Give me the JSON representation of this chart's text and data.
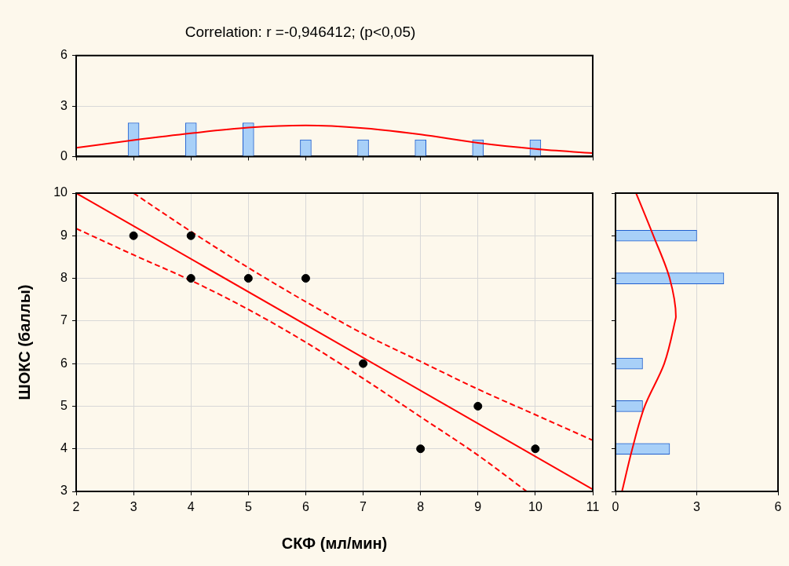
{
  "chart_data": [
    {
      "type": "bar",
      "title": "Correlation: r =-0,946412; (p<0,05)",
      "xlim": [
        2,
        11
      ],
      "xticks": [
        2,
        3,
        4,
        5,
        6,
        7,
        8,
        9,
        10,
        11
      ],
      "ylim": [
        0,
        6
      ],
      "yticks": [
        0,
        3,
        6
      ],
      "tick_labels": "y",
      "grid": "y",
      "series": [
        {
          "color": "#a8d0f8",
          "x": [
            3,
            4,
            5,
            6,
            7,
            8,
            9,
            10
          ],
          "values": [
            2,
            2,
            2,
            1,
            1,
            1,
            1,
            1
          ]
        },
        {
          "type": "line",
          "color": "#ff0000",
          "x": [
            2,
            3,
            4,
            5,
            6,
            7,
            8,
            9,
            10,
            11
          ],
          "values": [
            0.52,
            0.97,
            1.38,
            1.72,
            1.85,
            1.69,
            1.31,
            0.81,
            0.45,
            0.2
          ]
        }
      ]
    },
    {
      "type": "scatter",
      "xlabel": "СКФ (мл/мин)",
      "ylabel": "ШОКС (баллы)",
      "xlim": [
        2,
        11
      ],
      "xticks": [
        2,
        3,
        4,
        5,
        6,
        7,
        8,
        9,
        10,
        11
      ],
      "ylim": [
        3,
        10
      ],
      "yticks": [
        3,
        4,
        5,
        6,
        7,
        8,
        9,
        10
      ],
      "grid": true,
      "series": [
        {
          "color": "#000000",
          "marker": "circle",
          "x": [
            3,
            4,
            4,
            5,
            6,
            7,
            8,
            9,
            10
          ],
          "values": [
            9,
            9,
            8,
            8,
            8,
            6,
            4,
            5,
            4
          ]
        },
        {
          "type": "line",
          "color": "#ff0000",
          "x": [
            2,
            11
          ],
          "values": [
            10,
            3.05
          ]
        },
        {
          "type": "line",
          "color": "#ff0000",
          "line_style": "dashed",
          "x": [
            3,
            4,
            5,
            6,
            7,
            8,
            9,
            10,
            11
          ],
          "values": [
            10,
            9.1,
            8.25,
            7.45,
            6.7,
            6.05,
            5.4,
            4.8,
            4.2
          ]
        },
        {
          "type": "line",
          "color": "#ff0000",
          "line_style": "dashed",
          "x": [
            2,
            3,
            4,
            5,
            6,
            7,
            8,
            9,
            9.85
          ],
          "values": [
            9.17,
            8.55,
            7.95,
            7.27,
            6.5,
            5.65,
            4.75,
            3.85,
            3
          ]
        }
      ]
    },
    {
      "type": "bar",
      "orientation": "horizontal",
      "xlim": [
        0,
        6
      ],
      "xticks": [
        0,
        3,
        6
      ],
      "ylim": [
        3,
        10
      ],
      "yticks": [
        3,
        4,
        5,
        6,
        7,
        8,
        9,
        10
      ],
      "tick_labels": "x",
      "grid": "x",
      "series": [
        {
          "color": "#a8d0f8",
          "x": [
            4,
            5,
            6,
            8,
            9
          ],
          "values": [
            2,
            1,
            1,
            4,
            3
          ]
        },
        {
          "type": "line",
          "color": "#ff0000",
          "x": [
            3,
            4,
            5,
            6,
            7,
            7.1,
            8,
            9,
            10
          ],
          "values": [
            0.24,
            0.62,
            1.08,
            1.8,
            2.2,
            2.23,
            2.0,
            1.4,
            0.76
          ]
        }
      ]
    }
  ]
}
